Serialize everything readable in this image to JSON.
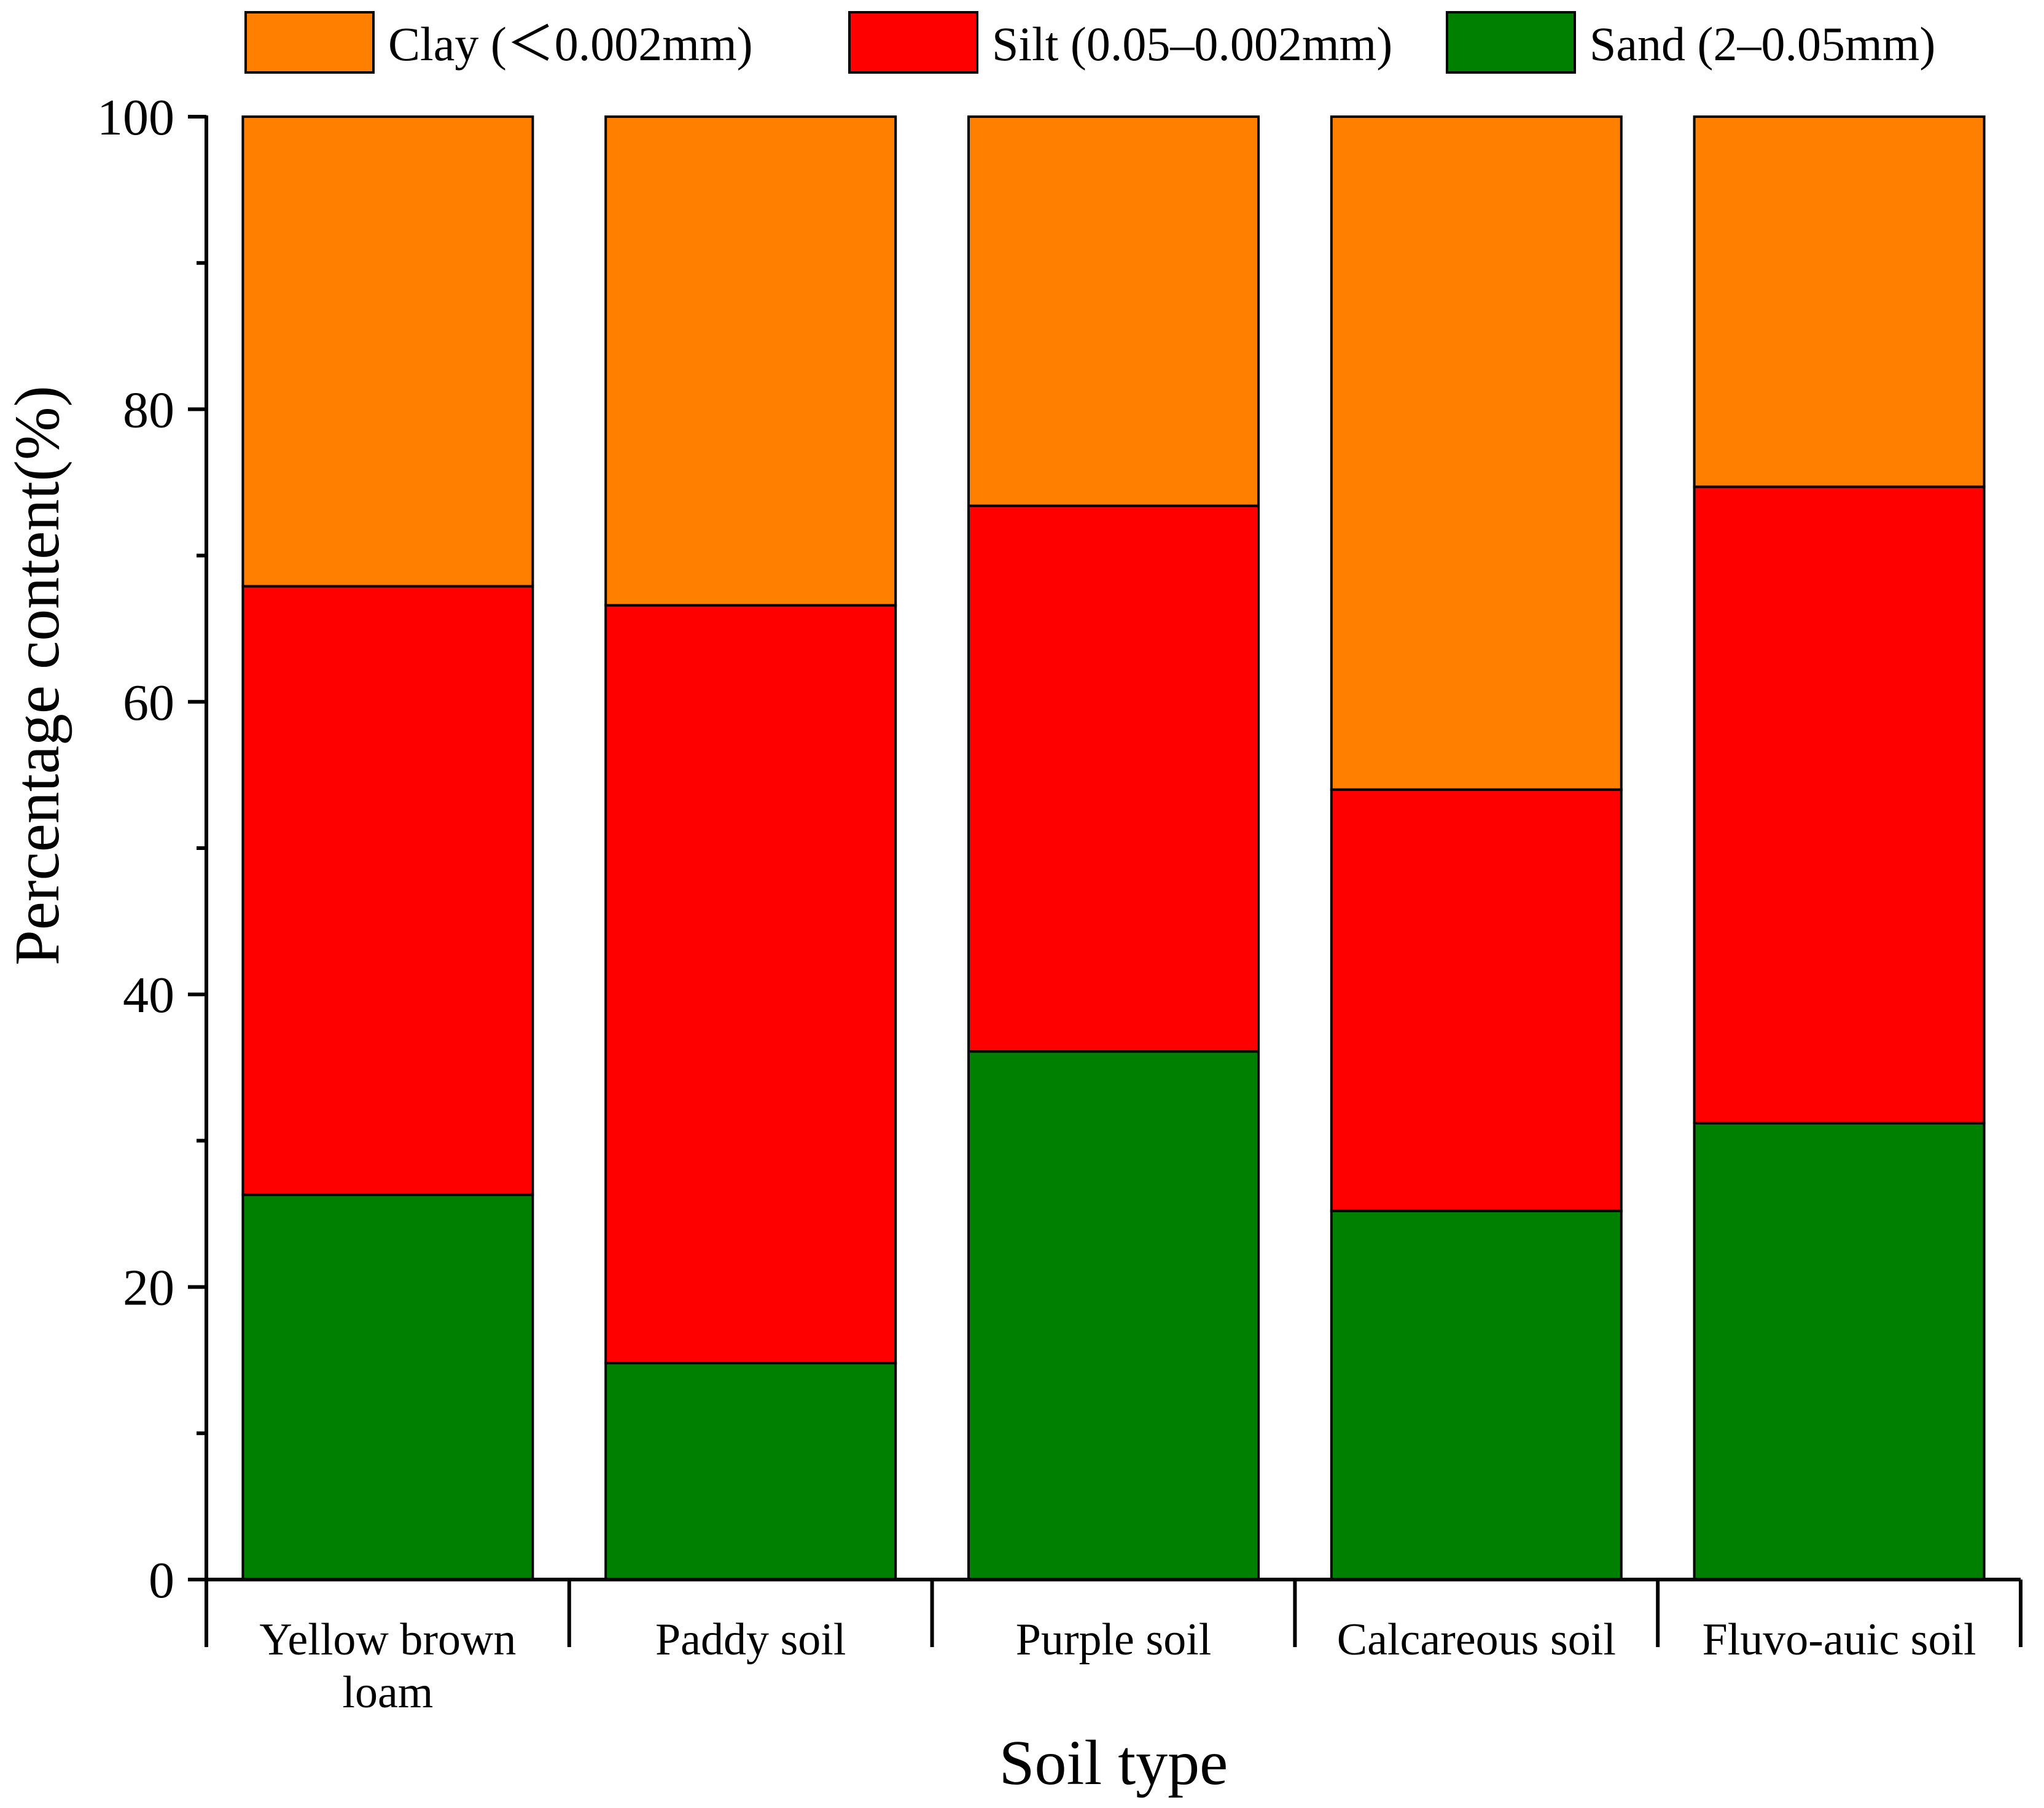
{
  "chart_data": {
    "type": "bar",
    "stacked": true,
    "title": "",
    "xlabel": "Soil type",
    "ylabel": "Percentage content(%)",
    "ylim": [
      0,
      100
    ],
    "yticks": [
      "0",
      "20",
      "40",
      "60",
      "80",
      "100"
    ],
    "legend_position": "top",
    "categories": [
      [
        "Yellow brown",
        "loam"
      ],
      [
        "Paddy soil"
      ],
      [
        "Purple soil"
      ],
      [
        "Calcareous soil"
      ],
      [
        "Fluvo-auic soil"
      ]
    ],
    "series": [
      {
        "name": "Sand (2–0.05mm)",
        "color": "#008000",
        "values": [
          26.3,
          14.8,
          36.1,
          25.2,
          31.2
        ]
      },
      {
        "name": "Silt (0.05–0.002mm)",
        "color": "#ff0000",
        "values": [
          41.6,
          51.8,
          37.3,
          28.8,
          43.5
        ]
      },
      {
        "name": "Clay (＜0.002mm)",
        "color": "#ff8000",
        "values": [
          32.1,
          33.4,
          26.6,
          46.0,
          25.3
        ]
      }
    ],
    "legend_order": [
      2,
      1,
      0
    ]
  }
}
